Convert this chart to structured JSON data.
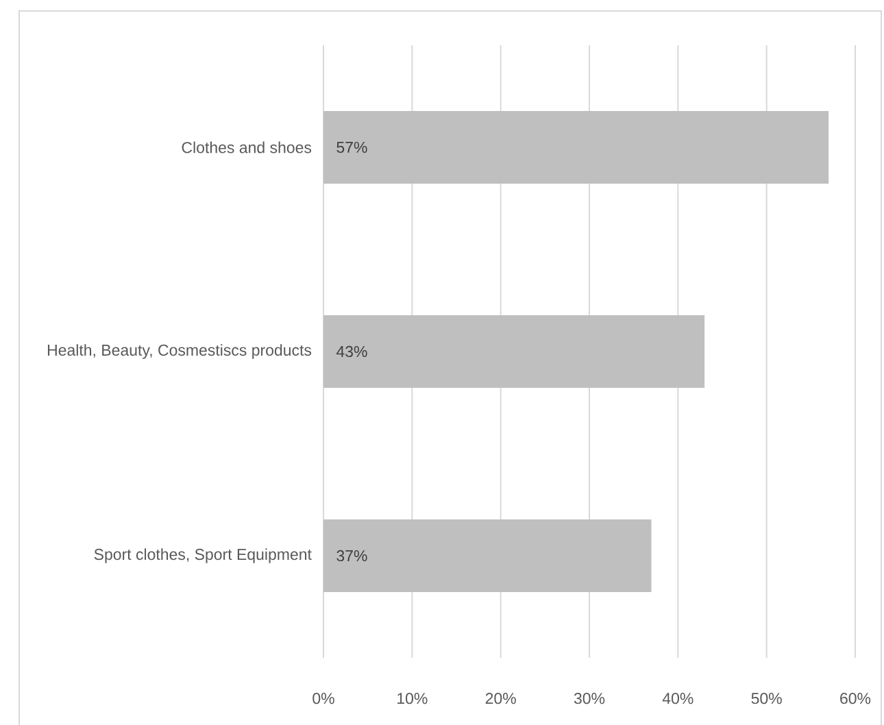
{
  "chart_data": {
    "type": "bar",
    "orientation": "horizontal",
    "categories": [
      "Clothes and shoes",
      "Health, Beauty, Cosmestiscs products",
      "Sport clothes, Sport Equipment"
    ],
    "values": [
      57,
      43,
      37
    ],
    "value_labels": [
      "57%",
      "43%",
      "37%"
    ],
    "color": "#bfbfbf",
    "xlim": [
      0,
      60
    ],
    "xticks": [
      {
        "value": 0,
        "label": "0%"
      },
      {
        "value": 10,
        "label": "10%"
      },
      {
        "value": 20,
        "label": "20%"
      },
      {
        "value": 30,
        "label": "30%"
      },
      {
        "value": 40,
        "label": "40%"
      },
      {
        "value": 50,
        "label": "50%"
      },
      {
        "value": 60,
        "label": "60%"
      }
    ],
    "grid": "x"
  }
}
